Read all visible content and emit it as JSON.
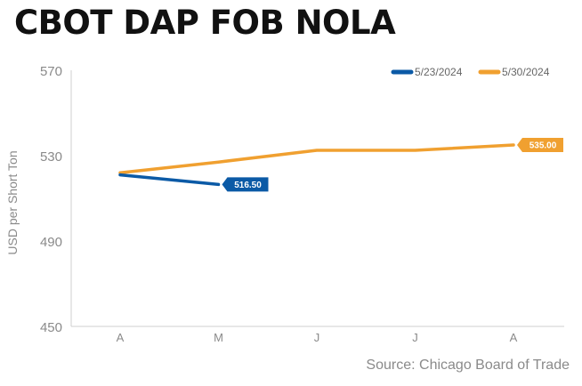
{
  "chart_data": {
    "type": "line",
    "title": "CBOT DAP FOB NOLA",
    "ylabel": "USD per Short Ton",
    "xlabel": "",
    "categories": [
      "A",
      "M",
      "J",
      "J",
      "A"
    ],
    "ylim": [
      450,
      570
    ],
    "yticks": [
      450,
      490,
      530,
      570
    ],
    "grid": false,
    "legend_position": "top-right",
    "series": [
      {
        "name": "5/23/2024",
        "color": "#0b5aa6",
        "values": [
          521.0,
          516.5,
          null,
          null,
          null
        ],
        "end_label": "516.50"
      },
      {
        "name": "5/30/2024",
        "color": "#f0a030",
        "values": [
          522.0,
          527.0,
          532.5,
          532.5,
          535.0
        ],
        "end_label": "535.00"
      }
    ],
    "source": "Source: Chicago Board of Trade"
  }
}
